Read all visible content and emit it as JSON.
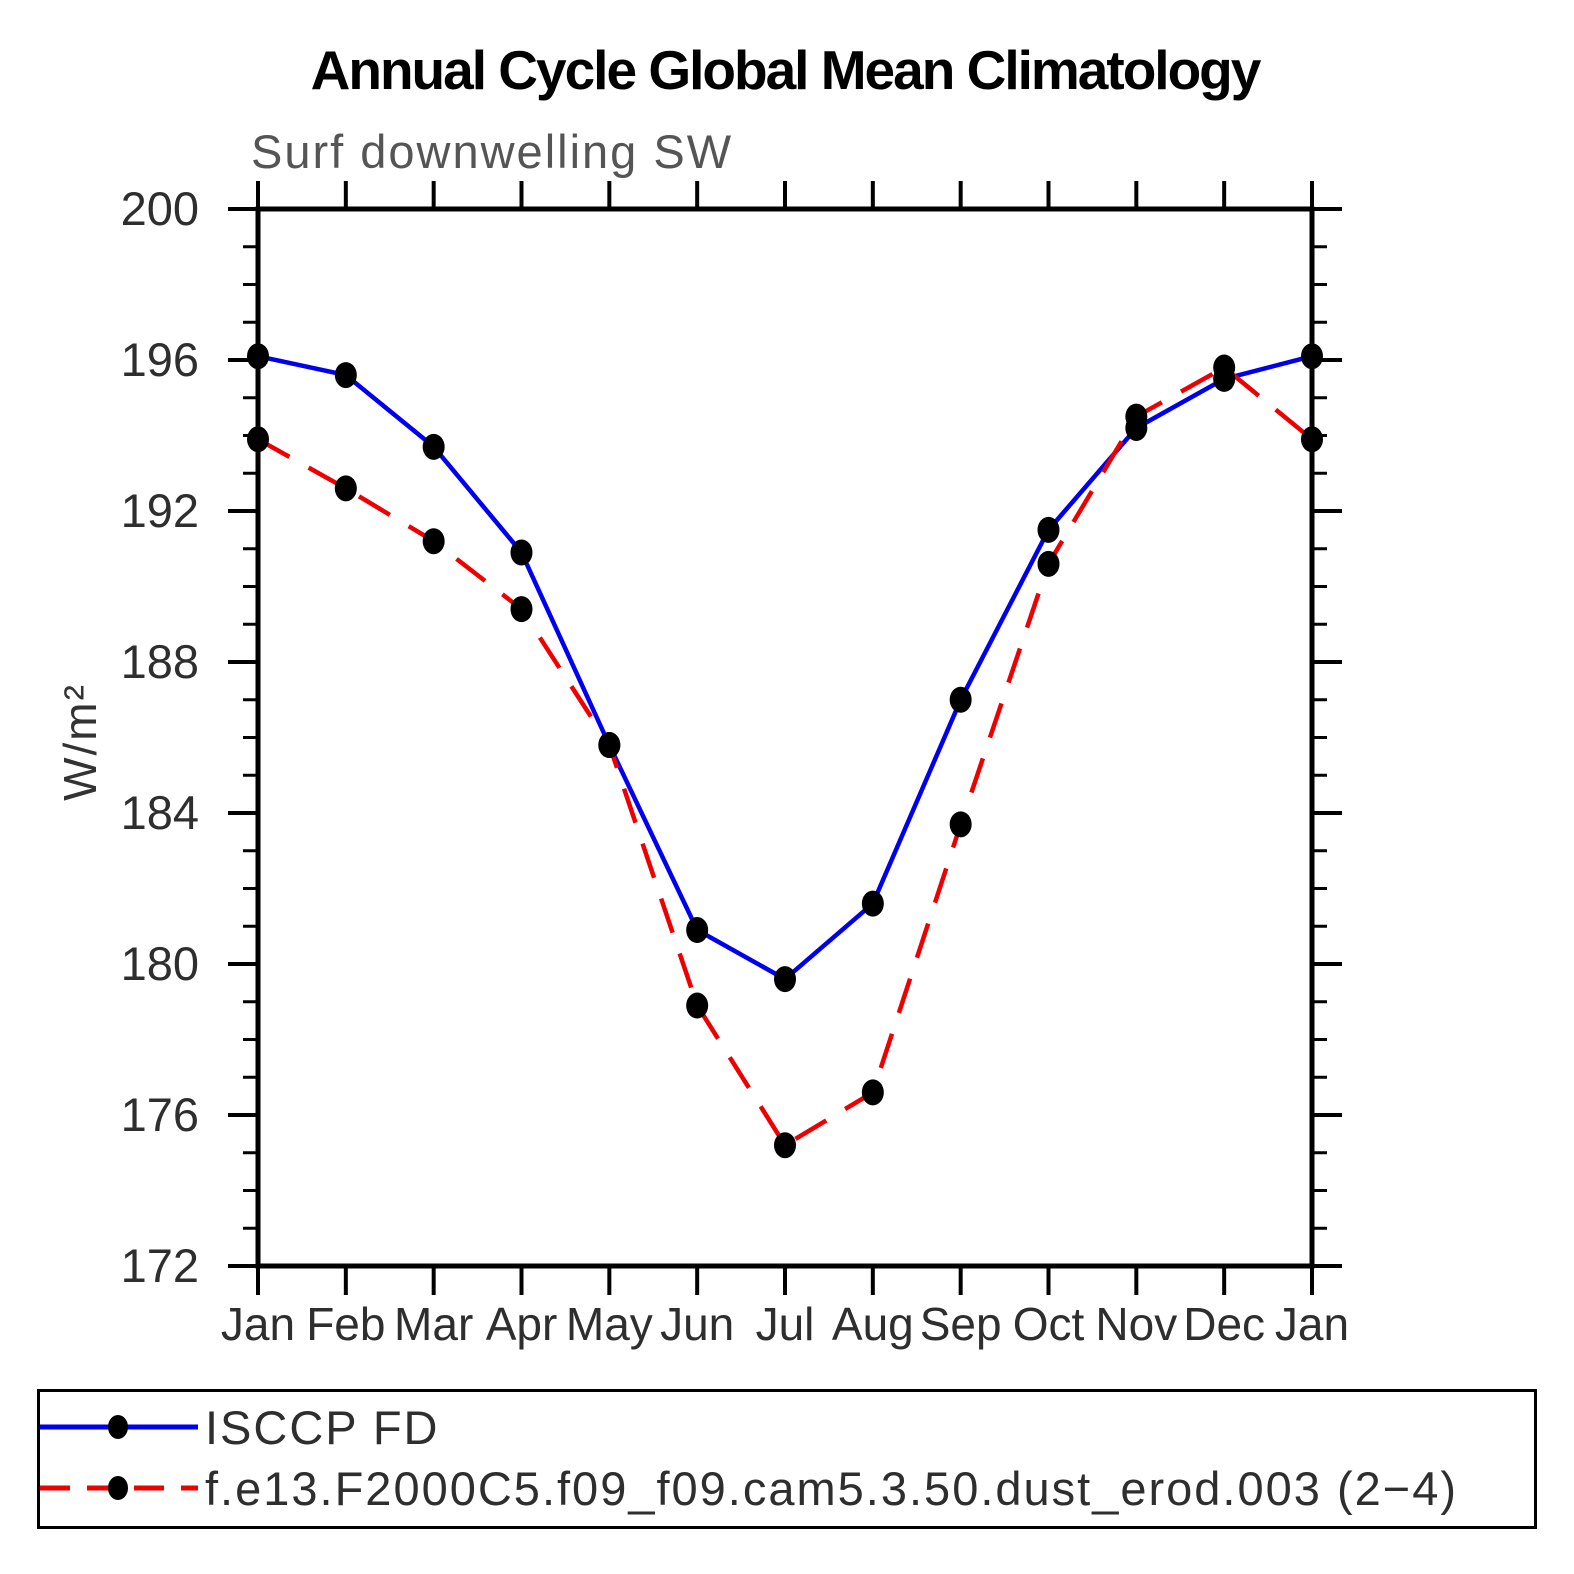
{
  "chart_data": {
    "type": "line",
    "title": "Annual Cycle Global Mean Climatology",
    "subtitle": "Surf downwelling SW",
    "ylabel": "W/m²",
    "xlabel": "",
    "ylim": [
      172,
      200
    ],
    "y_major_ticks": [
      172,
      176,
      180,
      184,
      188,
      192,
      196,
      200
    ],
    "y_minor_step": 1,
    "grid": false,
    "legend_position": "bottom",
    "categories": [
      "Jan",
      "Feb",
      "Mar",
      "Apr",
      "May",
      "Jun",
      "Jul",
      "Aug",
      "Sep",
      "Oct",
      "Nov",
      "Dec",
      "Jan"
    ],
    "series": [
      {
        "name": "ISCCP FD",
        "color": "#0000ee",
        "line_style": "solid",
        "marker": "filled-circle",
        "marker_color": "#000000",
        "values": [
          196.1,
          195.6,
          193.7,
          190.9,
          185.8,
          180.9,
          179.6,
          181.6,
          187.0,
          191.5,
          194.2,
          195.5,
          196.1
        ]
      },
      {
        "name": "f.e13.F2000C5.f09_f09.cam5.3.50.dust_erod.003 (2−4)",
        "color": "#ee0000",
        "line_style": "dashed",
        "marker": "filled-circle",
        "marker_color": "#000000",
        "values": [
          193.9,
          192.6,
          191.2,
          189.4,
          185.8,
          178.9,
          175.2,
          176.6,
          183.7,
          190.6,
          194.5,
          195.8,
          193.9
        ]
      }
    ]
  },
  "colors": {
    "axis": "#000000",
    "tick_label": "#2e2e2e",
    "subtitle": "#555555",
    "background": "#ffffff"
  }
}
